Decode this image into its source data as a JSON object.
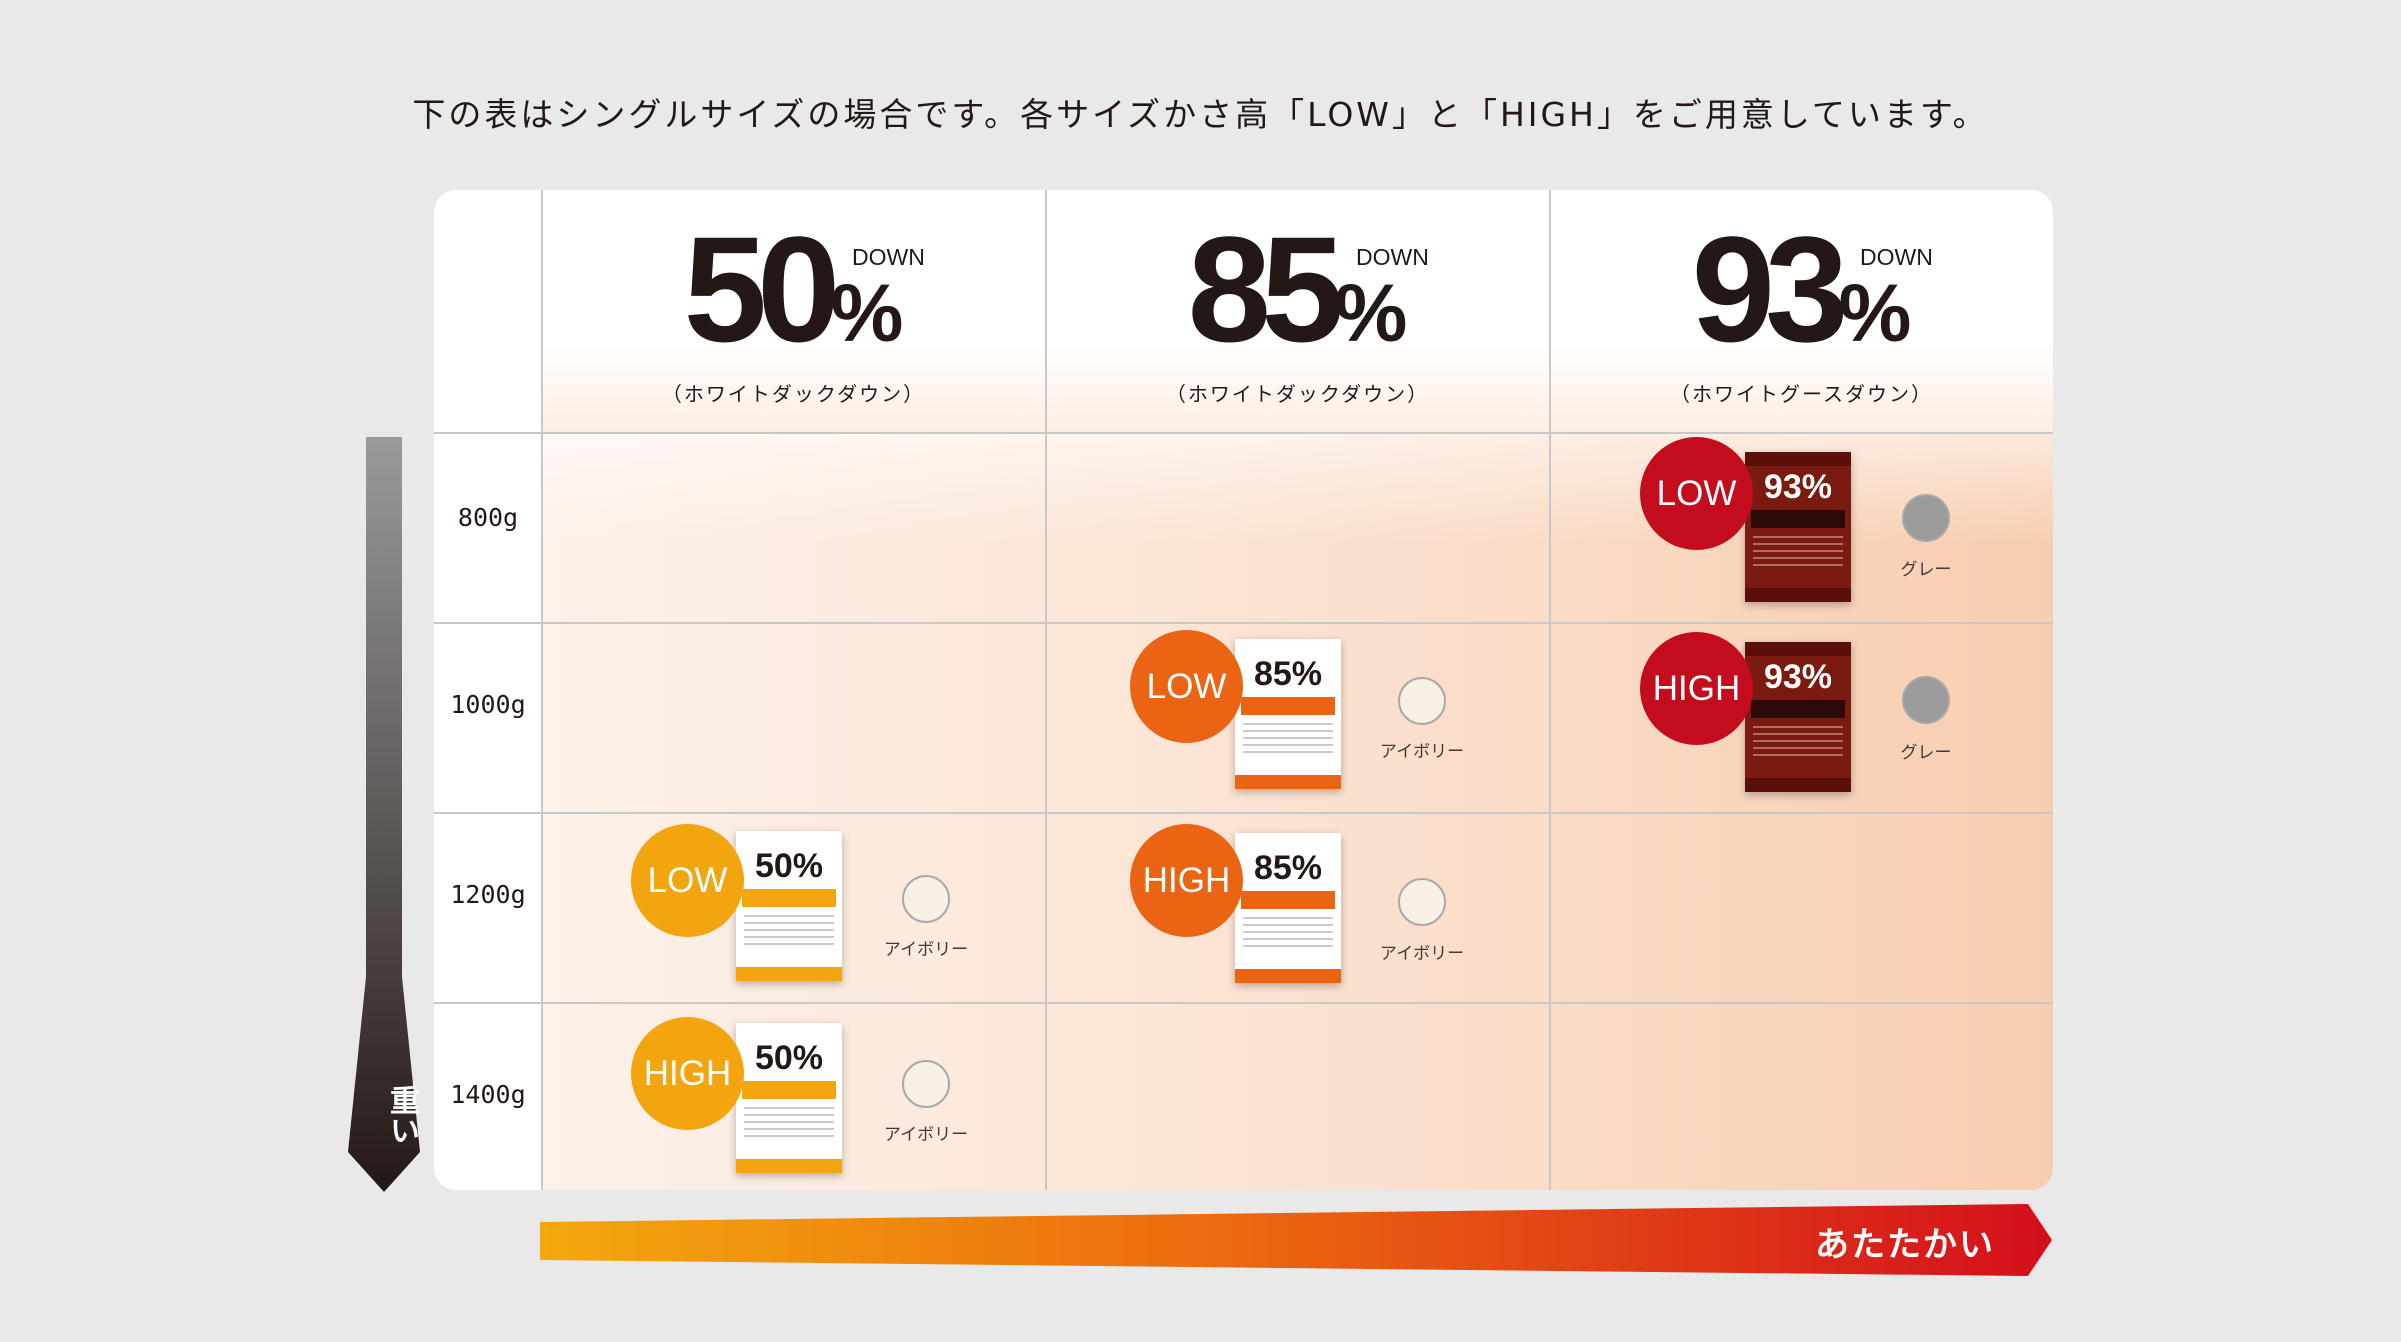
{
  "intro": "下の表はシングルサイズの場合です。各サイズかさ高「LOW」と「HIGH」をご用意しています。",
  "columns": [
    {
      "percent": "50",
      "sign": "%",
      "down": "DOWN",
      "sub": "（ホワイトダックダウン）"
    },
    {
      "percent": "85",
      "sign": "%",
      "down": "DOWN",
      "sub": "（ホワイトダックダウン）"
    },
    {
      "percent": "93",
      "sign": "%",
      "down": "DOWN",
      "sub": "（ホワイトグースダウン）"
    }
  ],
  "rows": [
    "800g",
    "1000g",
    "1200g",
    "1400g"
  ],
  "products": [
    {
      "badge": "LOW",
      "pack_percent": "93%",
      "color_label": "グレー"
    },
    {
      "badge": "LOW",
      "pack_percent": "85%",
      "color_label": "アイボリー"
    },
    {
      "badge": "HIGH",
      "pack_percent": "93%",
      "color_label": "グレー"
    },
    {
      "badge": "LOW",
      "pack_percent": "50%",
      "color_label": "アイボリー"
    },
    {
      "badge": "HIGH",
      "pack_percent": "85%",
      "color_label": "アイボリー"
    },
    {
      "badge": "HIGH",
      "pack_percent": "50%",
      "color_label": "アイボリー"
    }
  ],
  "axis": {
    "vertical_label": "重い",
    "horizontal_label": "あたたかい"
  },
  "colors": {
    "badge_50": "#f2a50f",
    "badge_85": "#ea6414",
    "badge_93": "#c40d1c",
    "swatch_ivory": "#f6f1e4",
    "swatch_grey": "#9b9b9b"
  }
}
